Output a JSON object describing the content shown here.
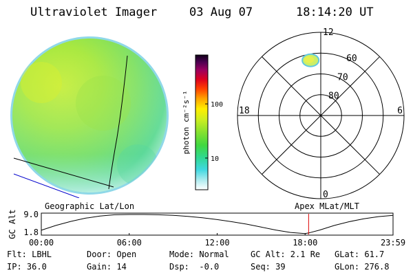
{
  "header": {
    "instrument": "Ultraviolet Imager",
    "date": "03 Aug 07",
    "time": "18:14:20 UT"
  },
  "colorbar": {
    "label": "photon cm⁻²s⁻¹",
    "ticks": [
      {
        "value": 10,
        "label": "10"
      },
      {
        "value": 100,
        "label": "100"
      }
    ],
    "range": [
      2.6,
      800
    ],
    "scale": "log"
  },
  "polar": {
    "mlt_labels": [
      {
        "mlt": 12,
        "label": "12"
      },
      {
        "mlt": 18,
        "label": "18"
      },
      {
        "mlt": 6,
        "label": "6"
      },
      {
        "mlt": 0,
        "label": "0"
      }
    ],
    "lat_rings": [
      {
        "mlat": 80,
        "label": "80"
      },
      {
        "mlat": 70,
        "label": "70"
      },
      {
        "mlat": 60,
        "label": "60"
      }
    ],
    "outer_mlat": 50,
    "auroral_patch": {
      "mlat": 63,
      "mlt": 12.7,
      "color": "#ccee66"
    }
  },
  "chart_data": {
    "type": "line",
    "title": "",
    "left_label": "Geographic Lat/Lon",
    "right_label": "Apex MLat/MLT",
    "ylabel": "GC Alt",
    "y_ticks": [
      "9.0",
      "1.8"
    ],
    "ylim": [
      1.8,
      9.0
    ],
    "x_ticks": [
      "00:00",
      "06:00",
      "12:00",
      "18:00",
      "23:59"
    ],
    "xlim_hours": [
      0,
      24
    ],
    "series": [
      {
        "x": [
          0,
          1,
          2,
          3,
          4,
          5,
          6,
          7,
          8,
          9,
          10,
          11,
          12,
          13,
          14,
          15,
          16,
          17,
          18,
          18.25,
          19,
          20,
          21,
          22,
          23,
          24
        ],
        "values": [
          3.1,
          4.9,
          6.4,
          7.6,
          8.4,
          8.9,
          9.0,
          9.0,
          8.9,
          8.7,
          8.3,
          7.8,
          7.1,
          6.3,
          5.4,
          4.3,
          3.2,
          2.3,
          1.85,
          2.1,
          3.2,
          4.9,
          6.3,
          7.4,
          8.2,
          8.7
        ]
      }
    ],
    "current_time_hours": 18.24,
    "marker_color": "#dd0000"
  },
  "footer": {
    "rows": [
      [
        "Flt: LBHL",
        "Door: Open",
        "Mode: Normal",
        "GC Alt: 2.1 Re",
        "GLat: 61.7"
      ],
      [
        "IP: 36.0",
        "Gain: 14",
        "Dsp:  -0.0",
        "Seq: 39",
        "GLon: 276.8"
      ]
    ]
  }
}
